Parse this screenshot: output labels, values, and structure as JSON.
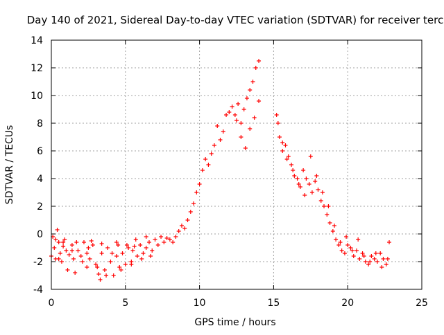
{
  "chart_data": {
    "type": "scatter",
    "title": "Day 140 of 2021, Sidereal Day-to-day VTEC variation (SDTVAR) for receiver terc",
    "xlabel": "GPS time / hours",
    "ylabel": "SDTVAR / TECUs",
    "xlim": [
      0,
      25
    ],
    "ylim": [
      -4,
      14
    ],
    "xticks": [
      "0",
      "5",
      "10",
      "15",
      "20",
      "25"
    ],
    "yticks": [
      "-4",
      "-2",
      "0",
      "2",
      "4",
      "6",
      "8",
      "10",
      "12",
      "14"
    ],
    "grid": true,
    "marker": "plus",
    "color": "#ff0000",
    "series": [
      {
        "name": "SDTVAR",
        "x": [
          0.0,
          0.1,
          0.2,
          0.3,
          0.4,
          0.5,
          0.6,
          0.7,
          0.8,
          0.9,
          1.0,
          1.2,
          1.4,
          1.5,
          1.6,
          1.8,
          2.0,
          2.2,
          2.4,
          2.5,
          2.6,
          2.8,
          3.0,
          3.2,
          3.3,
          3.4,
          3.6,
          3.8,
          4.0,
          4.2,
          4.4,
          4.5,
          4.6,
          4.8,
          5.0,
          5.2,
          5.4,
          5.5,
          5.6,
          5.8,
          6.0,
          6.2,
          6.4,
          6.6,
          6.8,
          7.0,
          7.2,
          7.4,
          7.6,
          7.8,
          8.0,
          8.2,
          8.4,
          8.6,
          8.8,
          9.0,
          9.2,
          9.4,
          9.6,
          9.8,
          10.0,
          10.2,
          10.4,
          10.6,
          10.8,
          11.0,
          11.2,
          11.4,
          11.6,
          11.8,
          12.0,
          12.2,
          12.4,
          12.6,
          12.8,
          13.0,
          13.2,
          13.4,
          13.6,
          13.8,
          14.0,
          15.2,
          15.4,
          15.6,
          15.8,
          16.0,
          16.2,
          16.4,
          16.6,
          16.8,
          17.0,
          17.2,
          17.4,
          17.6,
          17.8,
          18.0,
          18.2,
          18.4,
          18.6,
          18.8,
          19.0,
          19.2,
          19.4,
          19.6,
          19.8,
          20.0,
          20.2,
          20.4,
          20.6,
          20.8,
          21.0,
          21.2,
          21.4,
          21.6,
          21.8,
          22.0,
          22.2,
          22.4,
          22.6,
          22.8,
          0.3,
          0.5,
          0.8,
          1.1,
          1.4,
          1.7,
          2.1,
          2.4,
          2.7,
          3.1,
          3.4,
          3.7,
          4.1,
          4.4,
          4.7,
          5.1,
          5.4,
          5.7,
          6.1,
          6.4,
          6.7,
          12.5,
          12.8,
          13.1,
          13.4,
          13.7,
          14.0,
          15.3,
          15.6,
          15.9,
          16.3,
          16.7,
          17.1,
          17.5,
          17.9,
          18.3,
          18.7,
          19.1,
          19.5,
          19.9,
          20.3,
          20.7,
          21.1,
          21.5,
          21.9,
          22.3,
          22.7
        ],
        "y": [
          -1.6,
          -0.2,
          -1.0,
          -1.8,
          0.3,
          -0.6,
          -1.4,
          -2.0,
          -0.9,
          -0.4,
          -1.2,
          -1.5,
          -0.8,
          -1.8,
          -2.8,
          -1.2,
          -1.6,
          -0.6,
          -2.4,
          -1.0,
          -1.8,
          -0.8,
          -2.2,
          -2.9,
          -3.3,
          -1.4,
          -2.6,
          -1.0,
          -2.0,
          -3.0,
          -1.6,
          -0.8,
          -2.4,
          -1.4,
          -2.2,
          -1.0,
          -2.0,
          -1.2,
          -0.9,
          -1.6,
          -0.8,
          -1.4,
          -1.0,
          -0.6,
          -1.2,
          -0.4,
          -0.8,
          -0.2,
          -0.6,
          -0.3,
          -0.4,
          -0.6,
          -0.2,
          0.2,
          0.6,
          0.4,
          1.0,
          1.6,
          2.2,
          3.0,
          3.6,
          4.6,
          5.4,
          5.0,
          5.8,
          6.4,
          7.8,
          6.8,
          7.4,
          8.6,
          8.8,
          9.2,
          8.6,
          9.4,
          8.0,
          9.0,
          9.8,
          10.4,
          11.0,
          12.0,
          12.5,
          8.6,
          7.0,
          6.0,
          6.4,
          5.6,
          5.0,
          4.2,
          4.0,
          3.4,
          4.6,
          4.0,
          3.6,
          3.0,
          3.8,
          3.2,
          2.4,
          2.0,
          1.4,
          0.8,
          0.2,
          -0.4,
          -0.8,
          -1.2,
          -1.4,
          -0.8,
          -1.0,
          -1.6,
          -1.2,
          -1.8,
          -1.4,
          -2.0,
          -2.2,
          -1.6,
          -1.8,
          -2.0,
          -1.4,
          -1.8,
          -2.2,
          -0.6,
          -0.4,
          -1.8,
          -0.6,
          -2.6,
          -1.2,
          -0.6,
          -2.0,
          -1.4,
          -0.5,
          -2.4,
          -0.7,
          -3.0,
          -1.4,
          -0.6,
          -2.6,
          -0.8,
          -2.2,
          -0.4,
          -1.8,
          -0.2,
          -1.6,
          8.2,
          7.0,
          6.2,
          7.6,
          8.4,
          9.6,
          8.0,
          6.6,
          5.4,
          4.6,
          3.6,
          2.8,
          5.6,
          4.2,
          3.0,
          2.0,
          0.6,
          -0.6,
          -0.2,
          -1.2,
          -0.4,
          -1.6,
          -2.0,
          -1.4,
          -2.4,
          -1.8
        ]
      }
    ]
  }
}
